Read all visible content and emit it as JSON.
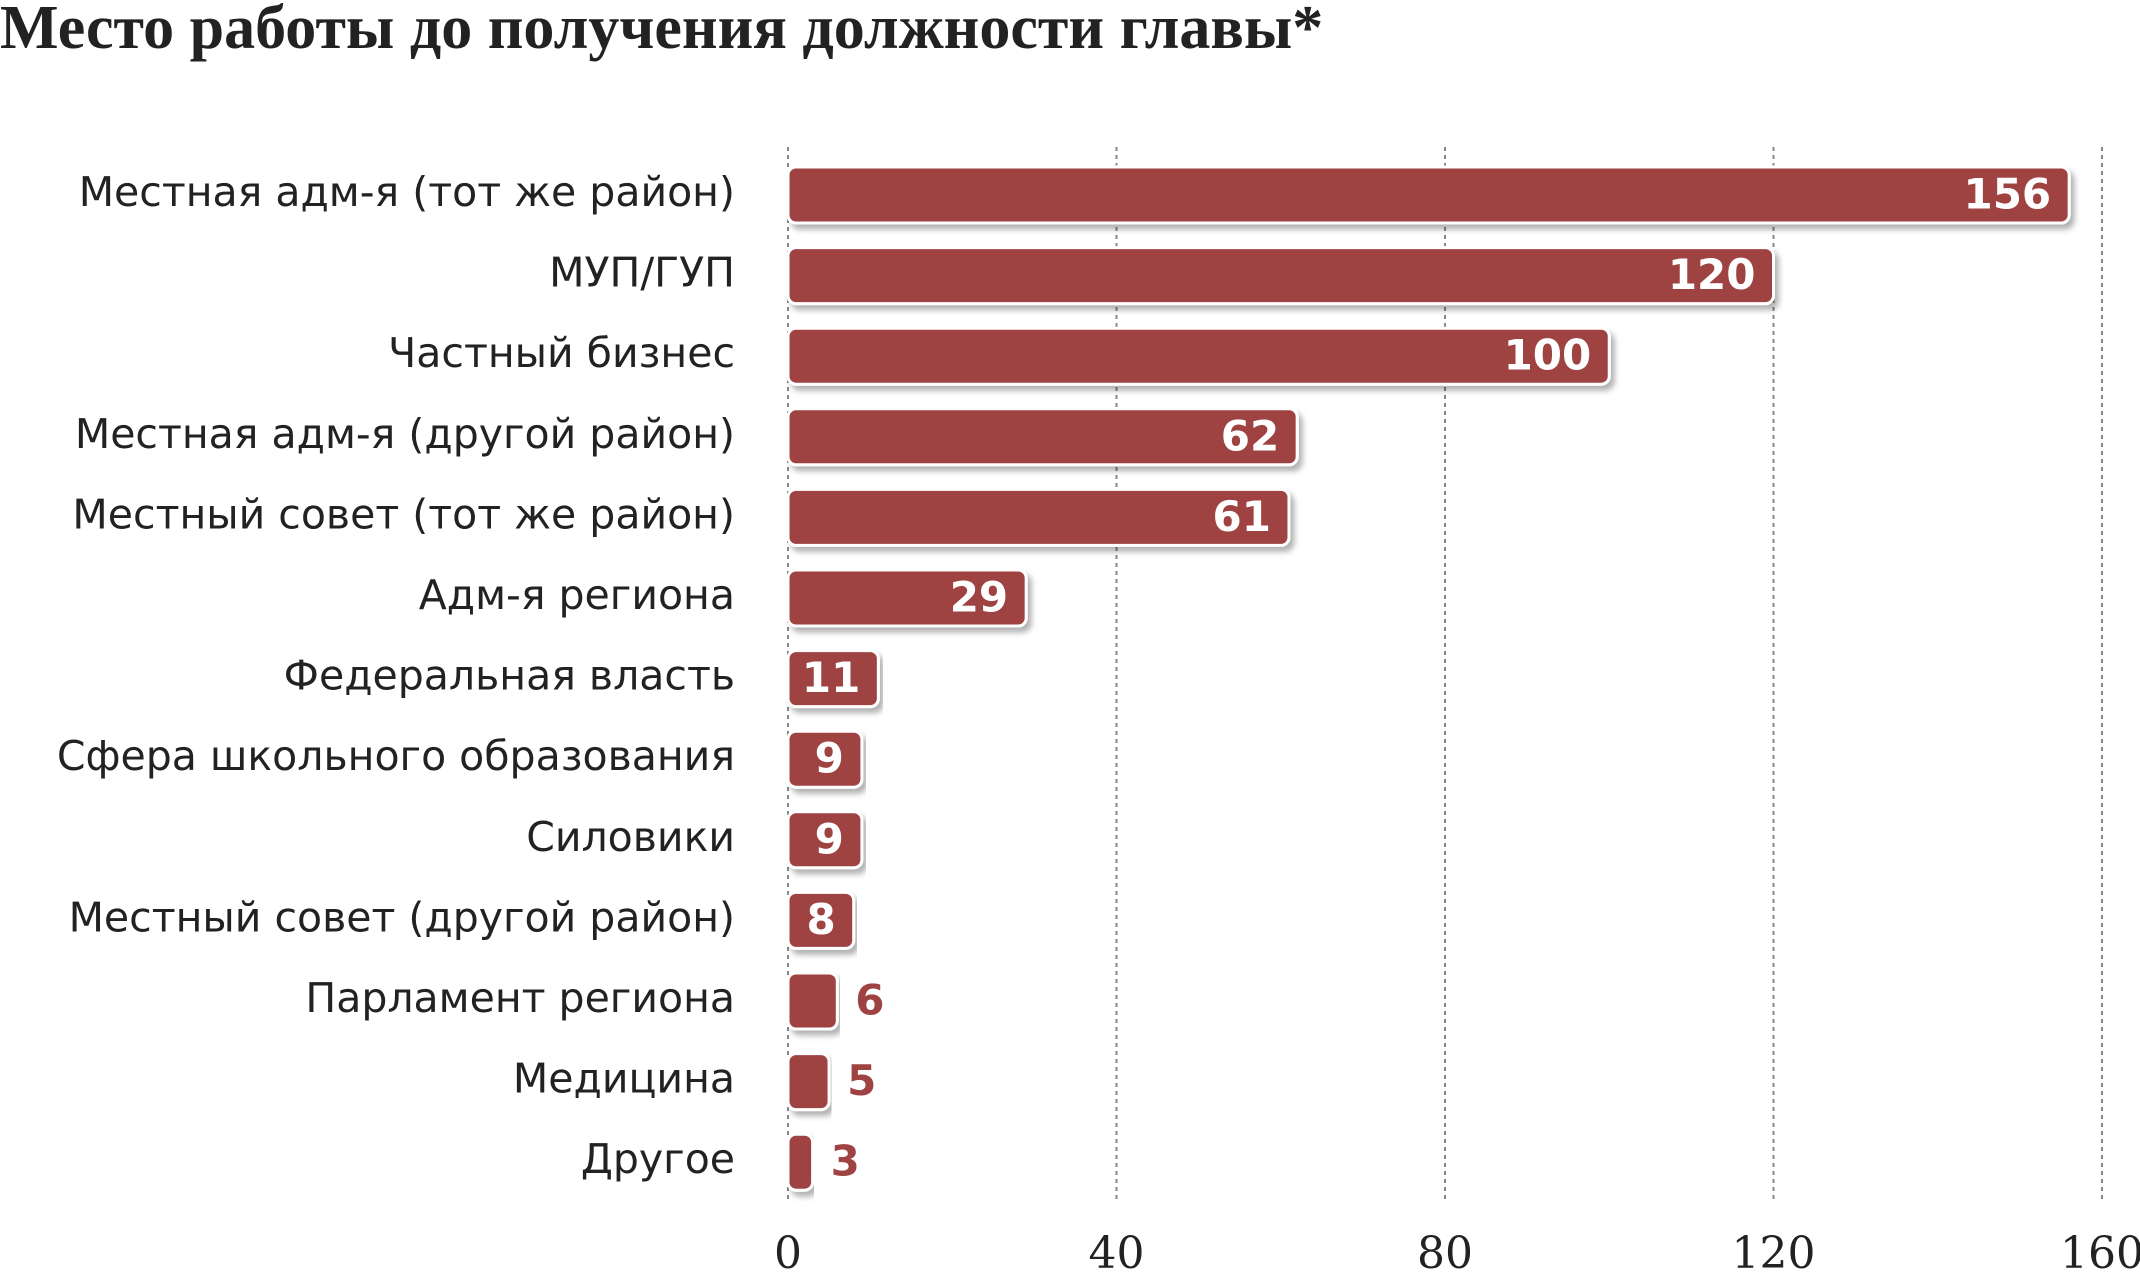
{
  "chart_data": {
    "type": "bar",
    "orientation": "horizontal",
    "title": "Место работы до получения должности главы*",
    "categories": [
      "Местная адм-я (тот же район)",
      "МУП/ГУП",
      "Частный бизнес",
      "Местная адм-я (другой район)",
      "Местный совет (тот же район)",
      "Адм-я региона",
      "Федеральная власть",
      "Сфера школьного образования",
      "Силовики",
      "Местный совет (другой район)",
      "Парламент региона",
      "Медицина",
      "Другое"
    ],
    "values": [
      156,
      120,
      100,
      62,
      61,
      29,
      11,
      9,
      9,
      8,
      6,
      5,
      3
    ],
    "color": "#9e4242",
    "xlim": [
      0,
      160
    ],
    "xticks": [
      0,
      40,
      80,
      120,
      160
    ],
    "grid": true
  }
}
